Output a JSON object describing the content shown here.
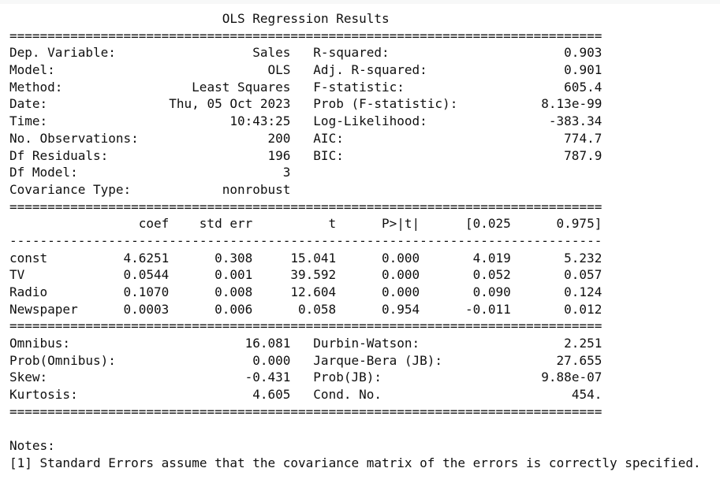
{
  "report": {
    "title": "OLS Regression Results",
    "divider_double": "==============================================================================",
    "divider_single": "------------------------------------------------------------------------------",
    "colors": {
      "text": "#101010",
      "background": "#ffffff"
    },
    "summary_rows": [
      {
        "llabel": "Dep. Variable:",
        "lvalue": "Sales",
        "rlabel": "R-squared:",
        "rvalue": "0.903"
      },
      {
        "llabel": "Model:",
        "lvalue": "OLS",
        "rlabel": "Adj. R-squared:",
        "rvalue": "0.901"
      },
      {
        "llabel": "Method:",
        "lvalue": "Least Squares",
        "rlabel": "F-statistic:",
        "rvalue": "605.4"
      },
      {
        "llabel": "Date:",
        "lvalue": "Thu, 05 Oct 2023",
        "rlabel": "Prob (F-statistic):",
        "rvalue": "8.13e-99"
      },
      {
        "llabel": "Time:",
        "lvalue": "10:43:25",
        "rlabel": "Log-Likelihood:",
        "rvalue": "-383.34"
      },
      {
        "llabel": "No. Observations:",
        "lvalue": "200",
        "rlabel": "AIC:",
        "rvalue": "774.7"
      },
      {
        "llabel": "Df Residuals:",
        "lvalue": "196",
        "rlabel": "BIC:",
        "rvalue": "787.9"
      },
      {
        "llabel": "Df Model:",
        "lvalue": "3"
      },
      {
        "llabel": "Covariance Type:",
        "lvalue": "nonrobust"
      }
    ],
    "coef_table": {
      "headers": {
        "name": "",
        "coef": "coef",
        "std_err": "std err",
        "t": "t",
        "p": "P>|t|",
        "ci_low": "[0.025",
        "ci_high": "0.975]"
      },
      "rows": [
        {
          "name": "const",
          "coef": "4.6251",
          "std_err": "0.308",
          "t": "15.041",
          "p": "0.000",
          "ci_low": "4.019",
          "ci_high": "5.232"
        },
        {
          "name": "TV",
          "coef": "0.0544",
          "std_err": "0.001",
          "t": "39.592",
          "p": "0.000",
          "ci_low": "0.052",
          "ci_high": "0.057"
        },
        {
          "name": "Radio",
          "coef": "0.1070",
          "std_err": "0.008",
          "t": "12.604",
          "p": "0.000",
          "ci_low": "0.090",
          "ci_high": "0.124"
        },
        {
          "name": "Newspaper",
          "coef": "0.0003",
          "std_err": "0.006",
          "t": "0.058",
          "p": "0.954",
          "ci_low": "-0.011",
          "ci_high": "0.012"
        }
      ]
    },
    "diagnostics_rows": [
      {
        "llabel": "Omnibus:",
        "lvalue": "16.081",
        "rlabel": "Durbin-Watson:",
        "rvalue": "2.251"
      },
      {
        "llabel": "Prob(Omnibus):",
        "lvalue": "0.000",
        "rlabel": "Jarque-Bera (JB):",
        "rvalue": "27.655"
      },
      {
        "llabel": "Skew:",
        "lvalue": "-0.431",
        "rlabel": "Prob(JB):",
        "rvalue": "9.88e-07"
      },
      {
        "llabel": "Kurtosis:",
        "lvalue": "4.605",
        "rlabel": "Cond. No.",
        "rvalue": "454."
      }
    ],
    "notes": {
      "heading": "Notes:",
      "note_1": "[1] Standard Errors assume that the covariance matrix of the errors is correctly specified."
    }
  }
}
